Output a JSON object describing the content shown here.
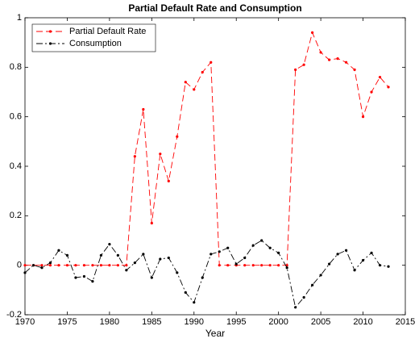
{
  "chart_data": {
    "type": "line",
    "title": "Partial Default Rate and Consumption",
    "xlabel": "Year",
    "x": [
      1970,
      1971,
      1972,
      1973,
      1974,
      1975,
      1976,
      1977,
      1978,
      1979,
      1980,
      1981,
      1982,
      1983,
      1984,
      1985,
      1986,
      1987,
      1988,
      1989,
      1990,
      1991,
      1992,
      1993,
      1994,
      1995,
      1996,
      1997,
      1998,
      1999,
      2000,
      2001,
      2002,
      2003,
      2004,
      2005,
      2006,
      2007,
      2008,
      2009,
      2010,
      2011,
      2012,
      2013
    ],
    "series": [
      {
        "name": "Partial Default Rate",
        "color": "#ff0000",
        "dash": "8,4",
        "values": [
          0,
          0,
          0,
          0,
          0,
          0,
          0,
          0,
          0,
          0,
          0,
          0,
          0,
          0.44,
          0.63,
          0.17,
          0.45,
          0.34,
          0.52,
          0.74,
          0.71,
          0.78,
          0.82,
          0,
          0,
          0,
          0,
          0,
          0,
          0,
          0,
          0,
          0.79,
          0.81,
          0.94,
          0.86,
          0.83,
          0.835,
          0.82,
          0.79,
          0.6,
          0.7,
          0.76,
          0.72
        ]
      },
      {
        "name": "Consumption",
        "color": "#000000",
        "dash": "8,3,2,3",
        "values": [
          -0.03,
          0,
          -0.01,
          0.01,
          0.06,
          0.04,
          -0.05,
          -0.045,
          -0.065,
          0.04,
          0.085,
          0.04,
          -0.02,
          0.01,
          0.045,
          -0.05,
          0.025,
          0.03,
          -0.03,
          -0.11,
          -0.15,
          -0.05,
          0.045,
          0.055,
          0.07,
          0.005,
          0.03,
          0.08,
          0.1,
          0.07,
          0.05,
          -0.01,
          -0.17,
          -0.13,
          -0.08,
          -0.04,
          0.005,
          0.045,
          0.06,
          -0.02,
          0.02,
          0.05,
          0,
          -0.005
        ]
      }
    ],
    "xlim": [
      1970,
      2015
    ],
    "xticks": [
      1970,
      1975,
      1980,
      1985,
      1990,
      1995,
      2000,
      2005,
      2010,
      2015
    ],
    "ylim": [
      -0.2,
      1
    ],
    "yticks": [
      -0.2,
      0,
      0.2,
      0.4,
      0.6,
      0.8,
      1
    ],
    "legend": "upper left"
  }
}
